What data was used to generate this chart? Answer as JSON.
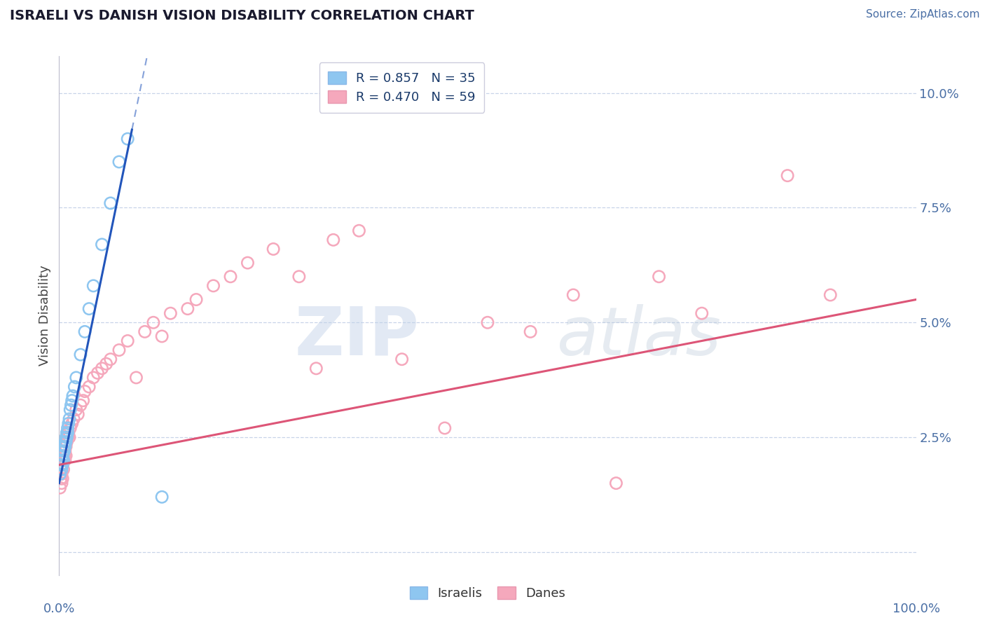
{
  "title": "ISRAELI VS DANISH VISION DISABILITY CORRELATION CHART",
  "source": "Source: ZipAtlas.com",
  "ylabel": "Vision Disability",
  "xlim": [
    0.0,
    1.0
  ],
  "ylim": [
    -0.005,
    0.108
  ],
  "israeli_color": "#8ec6f0",
  "danish_color": "#f5a8bc",
  "israeli_line_color": "#2255bb",
  "danish_line_color": "#dd5577",
  "legend_r_israeli": "R = 0.857",
  "legend_n_israeli": "N = 35",
  "legend_r_danish": "R = 0.470",
  "legend_n_danish": "N = 59",
  "watermark_zip": "ZIP",
  "watermark_atlas": "atlas",
  "background_color": "#ffffff",
  "grid_color": "#c8d4e8",
  "title_color": "#1a1a2e",
  "axis_label_color": "#4a6fa5",
  "legend_text_color": "#1a3a6a",
  "israeli_x": [
    0.001,
    0.002,
    0.003,
    0.003,
    0.004,
    0.004,
    0.005,
    0.005,
    0.006,
    0.006,
    0.007,
    0.007,
    0.008,
    0.008,
    0.009,
    0.009,
    0.01,
    0.01,
    0.011,
    0.012,
    0.013,
    0.014,
    0.015,
    0.016,
    0.018,
    0.02,
    0.025,
    0.03,
    0.035,
    0.04,
    0.05,
    0.06,
    0.07,
    0.08,
    0.12
  ],
  "israeli_y": [
    0.017,
    0.019,
    0.018,
    0.02,
    0.021,
    0.019,
    0.022,
    0.02,
    0.023,
    0.022,
    0.024,
    0.023,
    0.025,
    0.024,
    0.026,
    0.025,
    0.027,
    0.026,
    0.028,
    0.029,
    0.031,
    0.032,
    0.033,
    0.034,
    0.036,
    0.038,
    0.043,
    0.048,
    0.053,
    0.058,
    0.067,
    0.076,
    0.085,
    0.09,
    0.012
  ],
  "danish_x": [
    0.001,
    0.002,
    0.002,
    0.003,
    0.003,
    0.004,
    0.004,
    0.005,
    0.005,
    0.006,
    0.007,
    0.007,
    0.008,
    0.008,
    0.009,
    0.01,
    0.011,
    0.012,
    0.013,
    0.015,
    0.017,
    0.02,
    0.022,
    0.025,
    0.028,
    0.03,
    0.035,
    0.04,
    0.045,
    0.05,
    0.055,
    0.06,
    0.07,
    0.08,
    0.09,
    0.1,
    0.11,
    0.12,
    0.13,
    0.15,
    0.16,
    0.18,
    0.2,
    0.22,
    0.25,
    0.28,
    0.3,
    0.32,
    0.35,
    0.4,
    0.45,
    0.5,
    0.55,
    0.6,
    0.65,
    0.7,
    0.75,
    0.85,
    0.9
  ],
  "danish_y": [
    0.014,
    0.016,
    0.018,
    0.015,
    0.017,
    0.019,
    0.016,
    0.02,
    0.018,
    0.021,
    0.022,
    0.02,
    0.023,
    0.021,
    0.024,
    0.025,
    0.026,
    0.025,
    0.027,
    0.028,
    0.029,
    0.031,
    0.03,
    0.032,
    0.033,
    0.035,
    0.036,
    0.038,
    0.039,
    0.04,
    0.041,
    0.042,
    0.044,
    0.046,
    0.038,
    0.048,
    0.05,
    0.047,
    0.052,
    0.053,
    0.055,
    0.058,
    0.06,
    0.063,
    0.066,
    0.06,
    0.04,
    0.068,
    0.07,
    0.042,
    0.027,
    0.05,
    0.048,
    0.056,
    0.015,
    0.06,
    0.052,
    0.082,
    0.056
  ],
  "israeli_line_x0": 0.0,
  "israeli_line_y0": 0.015,
  "israeli_line_x1": 0.085,
  "israeli_line_y1": 0.092,
  "danish_line_x0": 0.0,
  "danish_line_y0": 0.019,
  "danish_line_x1": 1.0,
  "danish_line_y1": 0.055
}
